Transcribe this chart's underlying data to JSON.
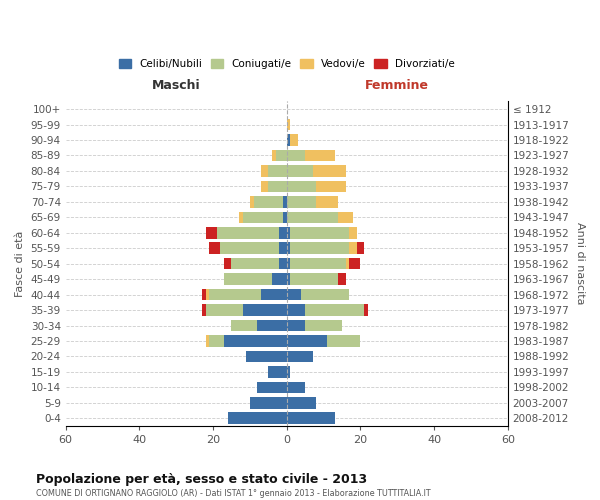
{
  "age_groups": [
    "0-4",
    "5-9",
    "10-14",
    "15-19",
    "20-24",
    "25-29",
    "30-34",
    "35-39",
    "40-44",
    "45-49",
    "50-54",
    "55-59",
    "60-64",
    "65-69",
    "70-74",
    "75-79",
    "80-84",
    "85-89",
    "90-94",
    "95-99",
    "100+"
  ],
  "birth_years": [
    "2008-2012",
    "2003-2007",
    "1998-2002",
    "1993-1997",
    "1988-1992",
    "1983-1987",
    "1978-1982",
    "1973-1977",
    "1968-1972",
    "1963-1967",
    "1958-1962",
    "1953-1957",
    "1948-1952",
    "1943-1947",
    "1938-1942",
    "1933-1937",
    "1928-1932",
    "1923-1927",
    "1918-1922",
    "1913-1917",
    "≤ 1912"
  ],
  "males": {
    "celibi": [
      16,
      10,
      8,
      5,
      11,
      17,
      8,
      12,
      7,
      4,
      2,
      2,
      2,
      1,
      1,
      0,
      0,
      0,
      0,
      0,
      0
    ],
    "coniugati": [
      0,
      0,
      0,
      0,
      0,
      4,
      7,
      10,
      14,
      13,
      13,
      16,
      17,
      11,
      8,
      5,
      5,
      3,
      0,
      0,
      0
    ],
    "vedovi": [
      0,
      0,
      0,
      0,
      0,
      1,
      0,
      0,
      1,
      0,
      0,
      0,
      0,
      1,
      1,
      2,
      2,
      1,
      0,
      0,
      0
    ],
    "divorziati": [
      0,
      0,
      0,
      0,
      0,
      0,
      0,
      1,
      1,
      0,
      2,
      3,
      3,
      0,
      0,
      0,
      0,
      0,
      0,
      0,
      0
    ]
  },
  "females": {
    "nubili": [
      13,
      8,
      5,
      1,
      7,
      11,
      5,
      5,
      4,
      1,
      1,
      1,
      1,
      0,
      0,
      0,
      0,
      0,
      1,
      0,
      0
    ],
    "coniugate": [
      0,
      0,
      0,
      0,
      0,
      9,
      10,
      16,
      13,
      13,
      15,
      16,
      16,
      14,
      8,
      8,
      7,
      5,
      0,
      0,
      0
    ],
    "vedove": [
      0,
      0,
      0,
      0,
      0,
      0,
      0,
      0,
      0,
      0,
      1,
      2,
      2,
      4,
      6,
      8,
      9,
      8,
      2,
      1,
      0
    ],
    "divorziate": [
      0,
      0,
      0,
      0,
      0,
      0,
      0,
      1,
      0,
      2,
      3,
      2,
      0,
      0,
      0,
      0,
      0,
      0,
      0,
      0,
      0
    ]
  },
  "colors": {
    "celibi": "#3b6ea5",
    "coniugati": "#b5c98e",
    "vedovi": "#f0c060",
    "divorziati": "#cc2222"
  },
  "xlim": 60,
  "title": "Popolazione per età, sesso e stato civile - 2013",
  "subtitle": "COMUNE DI ORTIGNANO RAGGIOLO (AR) - Dati ISTAT 1° gennaio 2013 - Elaborazione TUTTITALIA.IT",
  "xlabel_left": "Maschi",
  "xlabel_right": "Femmine",
  "ylabel_left": "Fasce di età",
  "ylabel_right": "Anni di nascita",
  "legend_labels": [
    "Celibi/Nubili",
    "Coniugati/e",
    "Vedovi/e",
    "Divorziati/e"
  ],
  "background_color": "#ffffff",
  "bar_height": 0.75
}
